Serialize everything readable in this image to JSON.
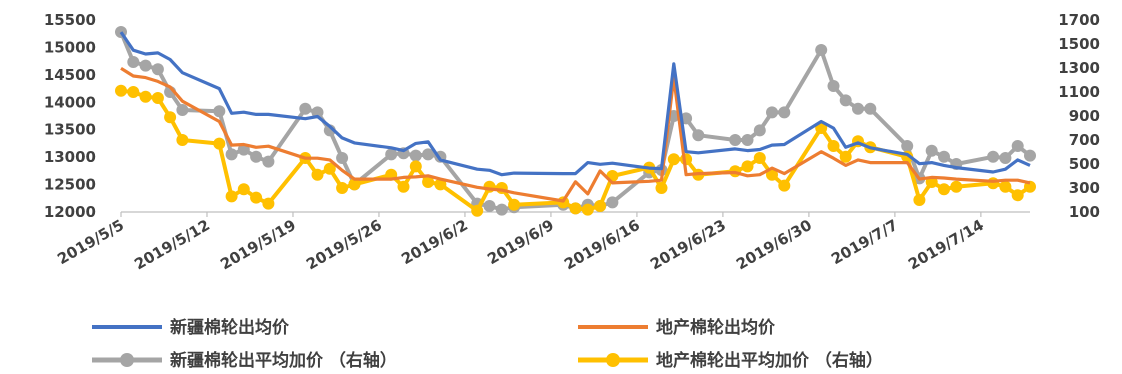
{
  "chart_data": {
    "type": "line",
    "title": "",
    "xlabel": "",
    "ylabel": "",
    "ylim": [
      12000,
      15500
    ],
    "y2lim": [
      100,
      1700
    ],
    "yticks": [
      "12000",
      "12500",
      "13000",
      "13500",
      "14000",
      "14500",
      "15000",
      "15500"
    ],
    "y2ticks": [
      "100",
      "300",
      "500",
      "700",
      "900",
      "1100",
      "1300",
      "1500",
      "1700"
    ],
    "xtick_labels": [
      "2019/5/5",
      "2019/5/12",
      "2019/5/19",
      "2019/5/26",
      "2019/6/2",
      "2019/6/9",
      "2019/6/16",
      "2019/6/23",
      "2019/6/30",
      "2019/7/7",
      "2019/7/14"
    ],
    "x_start": "2019/5/5",
    "x_end": "2019/7/18",
    "legend_position": "bottom",
    "series": [
      {
        "name": "新疆棉轮出均价",
        "axis": "left",
        "color": "#4472C4",
        "marker": false,
        "x": [
          "2019/5/5",
          "2019/5/6",
          "2019/5/7",
          "2019/5/8",
          "2019/5/9",
          "2019/5/10",
          "2019/5/13",
          "2019/5/14",
          "2019/5/15",
          "2019/5/16",
          "2019/5/17",
          "2019/5/20",
          "2019/5/21",
          "2019/5/22",
          "2019/5/23",
          "2019/5/24",
          "2019/5/27",
          "2019/5/28",
          "2019/5/29",
          "2019/5/30",
          "2019/5/31",
          "2019/6/3",
          "2019/6/4",
          "2019/6/5",
          "2019/6/6",
          "2019/6/10",
          "2019/6/11",
          "2019/6/12",
          "2019/6/13",
          "2019/6/14",
          "2019/6/17",
          "2019/6/18",
          "2019/6/19",
          "2019/6/20",
          "2019/6/21",
          "2019/6/24",
          "2019/6/25",
          "2019/6/26",
          "2019/6/27",
          "2019/6/28",
          "2019/7/1",
          "2019/7/2",
          "2019/7/3",
          "2019/7/4",
          "2019/7/5",
          "2019/7/8",
          "2019/7/9",
          "2019/7/10",
          "2019/7/11",
          "2019/7/12",
          "2019/7/15",
          "2019/7/16",
          "2019/7/17",
          "2019/7/18"
        ],
        "values": [
          15280,
          14950,
          14880,
          14900,
          14780,
          14540,
          14250,
          13800,
          13820,
          13780,
          13780,
          13700,
          13740,
          13560,
          13350,
          13260,
          13170,
          13120,
          13250,
          13280,
          12950,
          12780,
          12760,
          12680,
          12710,
          12700,
          12700,
          12900,
          12870,
          12890,
          12800,
          12790,
          14700,
          13100,
          13080,
          13150,
          13120,
          13140,
          13220,
          13230,
          13650,
          13530,
          13180,
          13260,
          13170,
          13050,
          12880,
          12900,
          12850,
          12810,
          12730,
          12780,
          12950,
          12850
        ]
      },
      {
        "name": "地产棉轮出均价",
        "axis": "left",
        "color": "#ED7D31",
        "marker": false,
        "x": [
          "2019/5/5",
          "2019/5/6",
          "2019/5/7",
          "2019/5/8",
          "2019/5/9",
          "2019/5/10",
          "2019/5/13",
          "2019/5/14",
          "2019/5/15",
          "2019/5/16",
          "2019/5/17",
          "2019/5/20",
          "2019/5/21",
          "2019/5/22",
          "2019/5/23",
          "2019/5/24",
          "2019/5/27",
          "2019/5/28",
          "2019/5/29",
          "2019/5/30",
          "2019/5/31",
          "2019/6/3",
          "2019/6/4",
          "2019/6/5",
          "2019/6/6",
          "2019/6/10",
          "2019/6/11",
          "2019/6/12",
          "2019/6/13",
          "2019/6/14",
          "2019/6/17",
          "2019/6/18",
          "2019/6/19",
          "2019/6/20",
          "2019/6/21",
          "2019/6/24",
          "2019/6/25",
          "2019/6/26",
          "2019/6/27",
          "2019/6/28",
          "2019/7/1",
          "2019/7/2",
          "2019/7/3",
          "2019/7/4",
          "2019/7/5",
          "2019/7/8",
          "2019/7/9",
          "2019/7/10",
          "2019/7/11",
          "2019/7/12",
          "2019/7/15",
          "2019/7/16",
          "2019/7/17",
          "2019/7/18"
        ],
        "values": [
          14620,
          14480,
          14450,
          14380,
          14280,
          14020,
          13650,
          13220,
          13230,
          13180,
          13200,
          12980,
          12980,
          12950,
          12760,
          12600,
          12600,
          12630,
          12640,
          12660,
          12600,
          12450,
          12420,
          12400,
          12350,
          12200,
          12550,
          12330,
          12750,
          12530,
          12560,
          12580,
          14450,
          12680,
          12700,
          12720,
          12660,
          12680,
          12800,
          12700,
          13100,
          12980,
          12850,
          12950,
          12900,
          12900,
          12600,
          12630,
          12620,
          12600,
          12560,
          12580,
          12580,
          12530
        ]
      },
      {
        "name": "新疆棉轮出平均加价 （右轴）",
        "axis": "right",
        "color": "#A5A5A5",
        "marker": true,
        "x": [
          "2019/5/5",
          "2019/5/6",
          "2019/5/7",
          "2019/5/8",
          "2019/5/9",
          "2019/5/10",
          "2019/5/13",
          "2019/5/14",
          "2019/5/15",
          "2019/5/16",
          "2019/5/17",
          "2019/5/20",
          "2019/5/21",
          "2019/5/22",
          "2019/5/23",
          "2019/5/24",
          "2019/5/27",
          "2019/5/28",
          "2019/5/29",
          "2019/5/30",
          "2019/5/31",
          "2019/6/3",
          "2019/6/4",
          "2019/6/5",
          "2019/6/6",
          "2019/6/10",
          "2019/6/11",
          "2019/6/12",
          "2019/6/13",
          "2019/6/14",
          "2019/6/17",
          "2019/6/18",
          "2019/6/19",
          "2019/6/20",
          "2019/6/21",
          "2019/6/24",
          "2019/6/25",
          "2019/6/26",
          "2019/6/27",
          "2019/6/28",
          "2019/7/1",
          "2019/7/2",
          "2019/7/3",
          "2019/7/4",
          "2019/7/5",
          "2019/7/8",
          "2019/7/9",
          "2019/7/10",
          "2019/7/11",
          "2019/7/12",
          "2019/7/15",
          "2019/7/16",
          "2019/7/17",
          "2019/7/18"
        ],
        "values": [
          1600,
          1350,
          1320,
          1290,
          1100,
          950,
          940,
          580,
          620,
          560,
          520,
          960,
          930,
          780,
          550,
          330,
          580,
          590,
          570,
          580,
          560,
          170,
          150,
          120,
          140,
          160,
          130,
          160,
          150,
          180,
          430,
          450,
          900,
          880,
          740,
          700,
          700,
          780,
          930,
          930,
          1450,
          1150,
          1030,
          960,
          960,
          650,
          380,
          610,
          560,
          500,
          560,
          550,
          650,
          570
        ]
      },
      {
        "name": "地产棉轮出平均加价 （右轴）",
        "axis": "right",
        "color": "#FFC000",
        "marker": true,
        "x": [
          "2019/5/5",
          "2019/5/6",
          "2019/5/7",
          "2019/5/8",
          "2019/5/9",
          "2019/5/10",
          "2019/5/13",
          "2019/5/14",
          "2019/5/15",
          "2019/5/16",
          "2019/5/17",
          "2019/5/20",
          "2019/5/21",
          "2019/5/22",
          "2019/5/23",
          "2019/5/24",
          "2019/5/27",
          "2019/5/28",
          "2019/5/29",
          "2019/5/30",
          "2019/5/31",
          "2019/6/3",
          "2019/6/4",
          "2019/6/5",
          "2019/6/6",
          "2019/6/10",
          "2019/6/11",
          "2019/6/12",
          "2019/6/13",
          "2019/6/14",
          "2019/6/17",
          "2019/6/18",
          "2019/6/19",
          "2019/6/20",
          "2019/6/21",
          "2019/6/24",
          "2019/6/25",
          "2019/6/26",
          "2019/6/27",
          "2019/6/28",
          "2019/7/1",
          "2019/7/2",
          "2019/7/3",
          "2019/7/4",
          "2019/7/5",
          "2019/7/8",
          "2019/7/9",
          "2019/7/10",
          "2019/7/11",
          "2019/7/12",
          "2019/7/15",
          "2019/7/16",
          "2019/7/17",
          "2019/7/18"
        ],
        "values": [
          1110,
          1100,
          1060,
          1050,
          890,
          700,
          670,
          230,
          290,
          220,
          170,
          550,
          410,
          460,
          300,
          330,
          410,
          310,
          480,
          350,
          330,
          110,
          310,
          300,
          160,
          180,
          130,
          120,
          150,
          400,
          470,
          300,
          540,
          540,
          410,
          440,
          480,
          550,
          410,
          320,
          800,
          650,
          560,
          690,
          640,
          560,
          200,
          350,
          290,
          310,
          340,
          310,
          240,
          310
        ]
      }
    ]
  }
}
